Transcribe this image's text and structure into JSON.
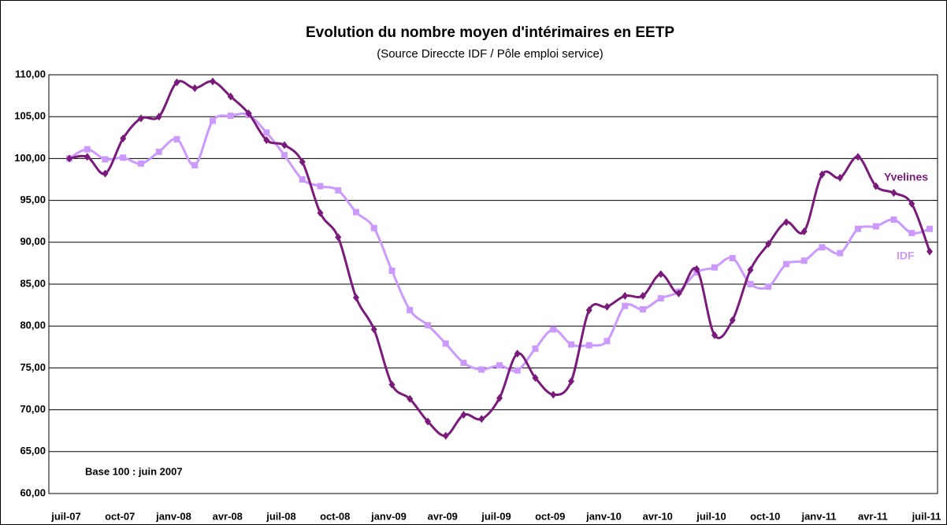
{
  "chart_data": {
    "type": "line",
    "title": "Evolution du nombre moyen d'intérimaires en EETP",
    "subtitle": "(Source Direccte IDF / Pôle emploi service)",
    "annotation": "Base 100 : juin 2007",
    "categories": [
      "juil-07",
      null,
      null,
      "oct-07",
      null,
      null,
      "janv-08",
      null,
      null,
      "avr-08",
      null,
      null,
      "juil-08",
      null,
      null,
      "oct-08",
      null,
      null,
      "janv-09",
      null,
      null,
      "avr-09",
      null,
      null,
      "juil-09",
      null,
      null,
      "oct-09",
      null,
      null,
      "janv-10",
      null,
      null,
      "avr-10",
      null,
      null,
      "juil-10",
      null,
      null,
      "oct-10",
      null,
      null,
      "janv-11",
      null,
      null,
      "avr-11",
      null,
      null,
      "juil-11"
    ],
    "series": [
      {
        "name": "Yvelines",
        "color": "#7a1a7a",
        "marker": "diamond",
        "values": [
          100.0,
          100.2,
          98.2,
          102.4,
          104.8,
          105.0,
          109.1,
          108.4,
          109.2,
          107.4,
          105.4,
          102.2,
          101.6,
          99.6,
          93.5,
          90.6,
          83.4,
          79.6,
          73.0,
          71.3,
          68.6,
          66.9,
          69.4,
          68.9,
          71.4,
          76.7,
          73.8,
          71.8,
          73.4,
          81.9,
          82.3,
          83.6,
          83.6,
          86.2,
          83.9,
          86.8,
          78.9,
          80.7,
          86.7,
          89.8,
          92.4,
          91.3,
          98.1,
          97.7,
          100.2,
          96.7,
          95.9,
          94.6,
          88.9
        ]
      },
      {
        "name": "IDF",
        "color": "#cc99ff",
        "marker": "square",
        "values": [
          100.0,
          101.1,
          99.9,
          100.1,
          99.4,
          100.8,
          102.3,
          99.2,
          104.5,
          105.1,
          105.2,
          103.1,
          100.4,
          97.5,
          96.7,
          96.2,
          93.6,
          91.7,
          86.6,
          81.9,
          80.1,
          77.9,
          75.6,
          74.8,
          75.3,
          74.7,
          77.3,
          79.6,
          77.8,
          77.7,
          78.2,
          82.4,
          82.0,
          83.3,
          84.1,
          86.4,
          87.0,
          88.1,
          85.0,
          84.7,
          87.4,
          87.8,
          89.4,
          88.7,
          91.6,
          91.9,
          92.7,
          91.1,
          91.6
        ]
      }
    ],
    "ylim": [
      60,
      110
    ],
    "yticks": [
      {
        "value": 60,
        "label": "60,00"
      },
      {
        "value": 65,
        "label": "65,00"
      },
      {
        "value": 70,
        "label": "70,00"
      },
      {
        "value": 75,
        "label": "75,00"
      },
      {
        "value": 80,
        "label": "80,00"
      },
      {
        "value": 85,
        "label": "85,00"
      },
      {
        "value": 90,
        "label": "90,00"
      },
      {
        "value": 95,
        "label": "95,00"
      },
      {
        "value": 100,
        "label": "100,00"
      },
      {
        "value": 105,
        "label": "105,00"
      },
      {
        "value": 110,
        "label": "110,00"
      }
    ],
    "grid": true
  }
}
